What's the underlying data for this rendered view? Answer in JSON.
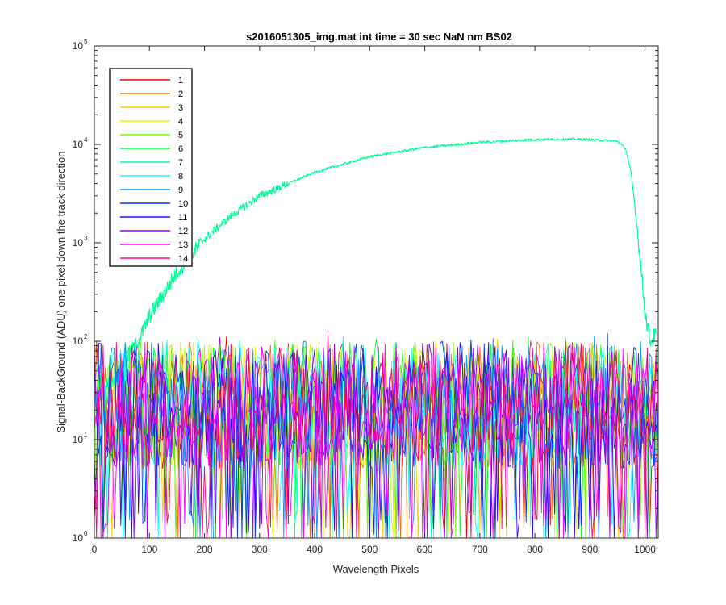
{
  "chart_data": {
    "type": "line",
    "title": "s2016051305_img.mat int time = 30 sec  NaN nm BS02",
    "xlabel": "Wavelength Pixels",
    "ylabel": "Signal-BackGround (ADU) one pixel down the track direction",
    "xlim": [
      0,
      1024
    ],
    "ylim": [
      1,
      100000
    ],
    "yscale": "log",
    "x_ticks": [
      "0",
      "100",
      "200",
      "300",
      "400",
      "500",
      "600",
      "700",
      "800",
      "900",
      "1000"
    ],
    "y_ticks": [
      {
        "base": "10",
        "exp": "0"
      },
      {
        "base": "10",
        "exp": "1"
      },
      {
        "base": "10",
        "exp": "2"
      },
      {
        "base": "10",
        "exp": "3"
      },
      {
        "base": "10",
        "exp": "4"
      },
      {
        "base": "10",
        "exp": "5"
      }
    ],
    "legend_position": "top-left",
    "noise_series": {
      "x_range": [
        0,
        1024
      ],
      "typical_range": [
        1,
        100
      ],
      "occasional_peak": 120
    },
    "series": [
      {
        "name": "1",
        "color": "#ff0000"
      },
      {
        "name": "2",
        "color": "#ff7000"
      },
      {
        "name": "3",
        "color": "#ffc800"
      },
      {
        "name": "4",
        "color": "#d4ff00"
      },
      {
        "name": "5",
        "color": "#6cff00"
      },
      {
        "name": "6",
        "color": "#10ff30"
      },
      {
        "name": "7",
        "color": "#00ff96",
        "x": [
          0,
          40,
          60,
          80,
          100,
          150,
          200,
          250,
          300,
          400,
          500,
          600,
          700,
          800,
          880,
          950,
          965,
          975,
          985,
          1000,
          1010,
          1020
        ],
        "y": [
          25,
          45,
          70,
          100,
          180,
          500,
          1100,
          1900,
          3000,
          5200,
          7500,
          9300,
          10500,
          11200,
          11300,
          10800,
          9000,
          5000,
          1600,
          200,
          100,
          120
        ]
      },
      {
        "name": "8",
        "color": "#00ffff"
      },
      {
        "name": "9",
        "color": "#0096ff"
      },
      {
        "name": "10",
        "color": "#0032ff"
      },
      {
        "name": "11",
        "color": "#3800ff"
      },
      {
        "name": "12",
        "color": "#9a00ff"
      },
      {
        "name": "13",
        "color": "#ff00ff"
      },
      {
        "name": "14",
        "color": "#ff0078"
      }
    ]
  }
}
